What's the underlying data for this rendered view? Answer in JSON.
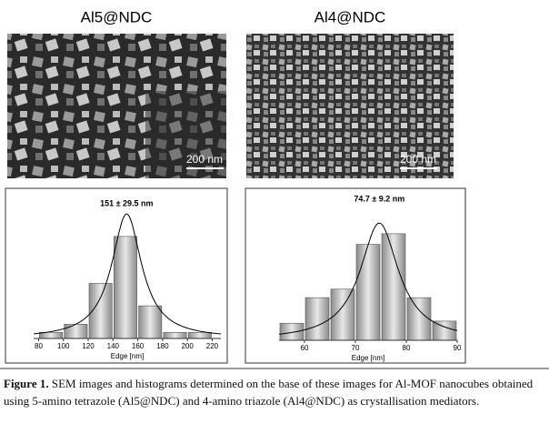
{
  "panels": [
    {
      "title": "Al5@NDC",
      "scale_bar": "200 nm"
    },
    {
      "title": "Al4@NDC",
      "scale_bar": "200 nm"
    }
  ],
  "chart_data": [
    {
      "type": "histogram",
      "title": "151 ± 29.5 nm",
      "x_label": "Edge [nm]",
      "bins": [
        80,
        100,
        120,
        140,
        160,
        180,
        200,
        220
      ],
      "values": [
        3,
        7,
        27,
        50,
        16,
        3,
        3
      ],
      "xlim": [
        76,
        227
      ],
      "xticks": [
        80,
        100,
        120,
        140,
        160,
        180,
        200,
        220
      ],
      "ylim": [
        0,
        70
      ],
      "fit": {
        "center": 151,
        "width": 29.5,
        "amplitude": 61
      }
    },
    {
      "type": "histogram",
      "title": "74.7 ± 9.2 nm",
      "x_label": "Edge [nm]",
      "bins": [
        55,
        60,
        65,
        70,
        75,
        80,
        85,
        90
      ],
      "values": [
        8,
        20,
        24,
        45,
        50,
        20,
        9
      ],
      "xlim": [
        55,
        90
      ],
      "xticks": [
        60,
        70,
        80,
        90
      ],
      "ylim": [
        0,
        70
      ],
      "fit": {
        "center": 74.7,
        "width": 9.2,
        "amplitude": 55
      }
    }
  ],
  "caption": {
    "label": "Figure 1.",
    "text": "SEM images and histograms determined on the base of these images for Al-MOF nanocubes obtained using 5-amino tetrazole (Al5@NDC) and 4-amino triazole (Al4@NDC) as crystallisation mediators."
  }
}
